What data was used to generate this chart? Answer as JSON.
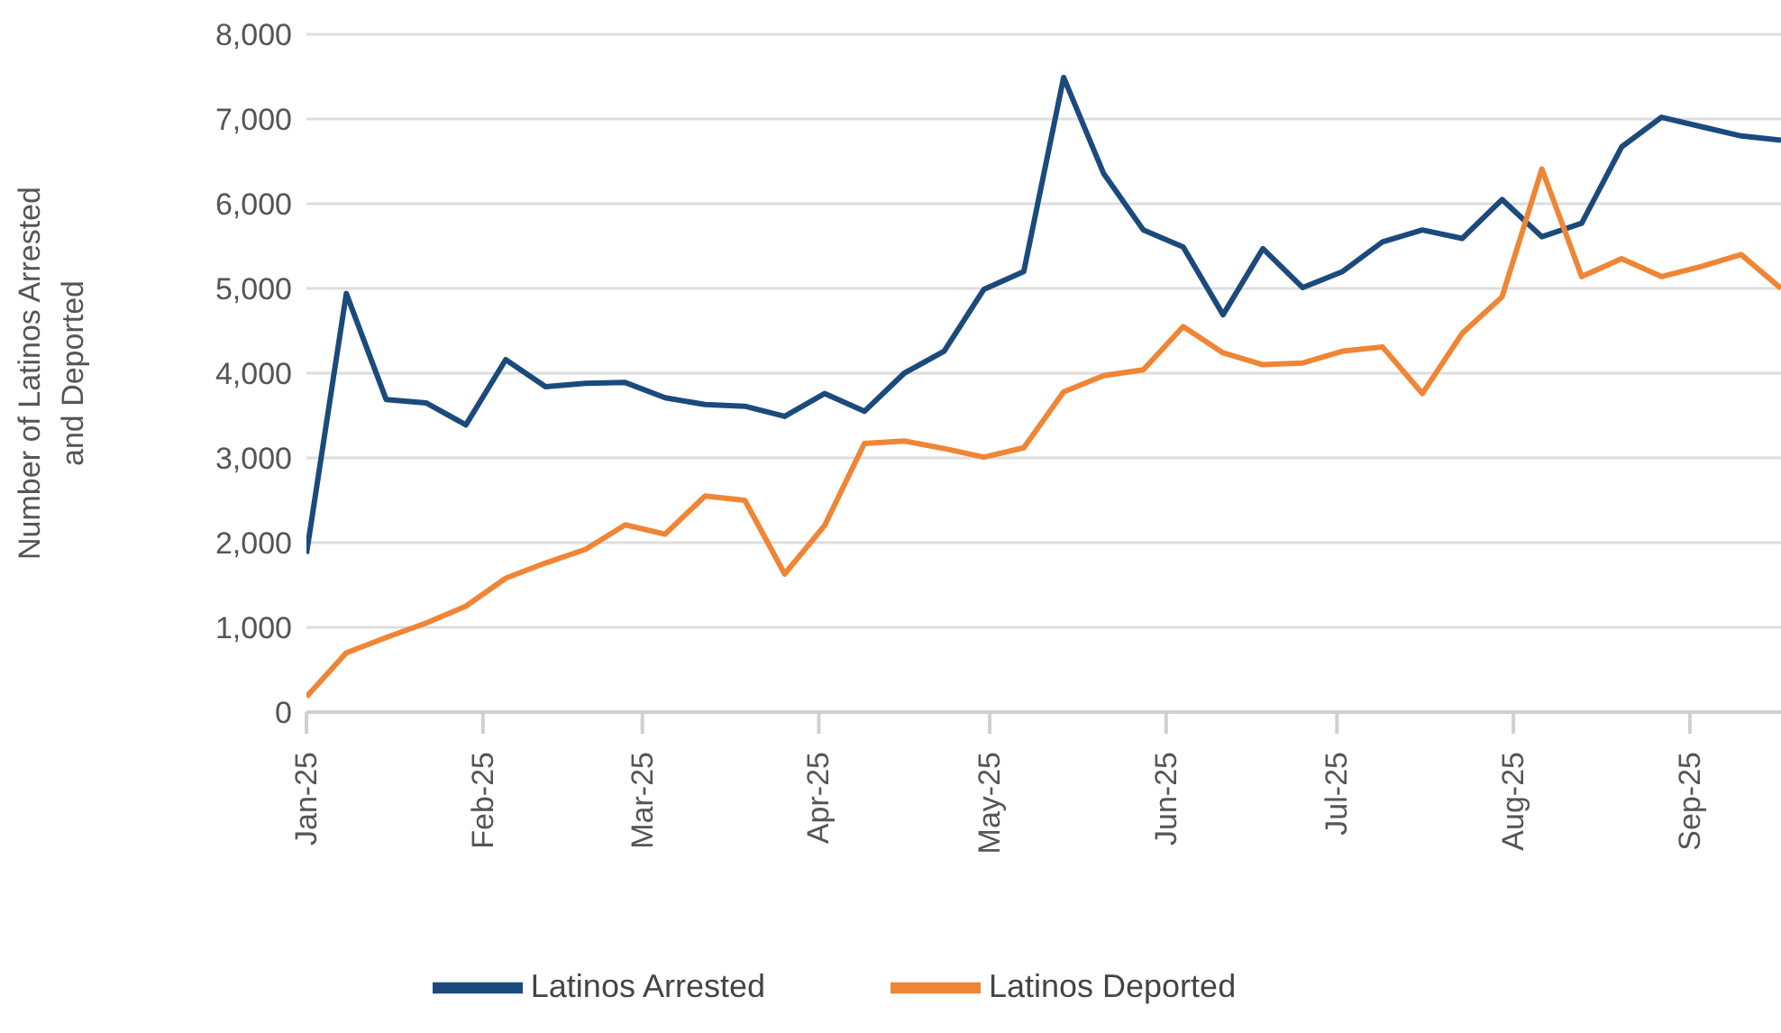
{
  "chart_data": {
    "type": "line",
    "ylabel": "Number of Latinos Arrested and Deported",
    "x": [
      "2025-01-01",
      "2025-01-08",
      "2025-01-15",
      "2025-01-22",
      "2025-01-29",
      "2025-02-05",
      "2025-02-12",
      "2025-02-19",
      "2025-02-26",
      "2025-03-05",
      "2025-03-12",
      "2025-03-19",
      "2025-03-26",
      "2025-04-02",
      "2025-04-09",
      "2025-04-16",
      "2025-04-23",
      "2025-04-30",
      "2025-05-07",
      "2025-05-14",
      "2025-05-21",
      "2025-05-28",
      "2025-06-04",
      "2025-06-11",
      "2025-06-18",
      "2025-06-25",
      "2025-07-02",
      "2025-07-09",
      "2025-07-16",
      "2025-07-23",
      "2025-07-30",
      "2025-08-06",
      "2025-08-13",
      "2025-08-20",
      "2025-08-27",
      "2025-09-03",
      "2025-09-10",
      "2025-09-17"
    ],
    "series": [
      {
        "name": "Latinos Arrested",
        "color": "#1b4a7c",
        "values": [
          1870,
          4940,
          3690,
          3650,
          3390,
          4160,
          3840,
          3880,
          3890,
          3710,
          3630,
          3610,
          3490,
          3760,
          3550,
          4000,
          4260,
          4990,
          5200,
          7490,
          6360,
          5690,
          5490,
          4690,
          5470,
          5010,
          5200,
          5550,
          5690,
          5590,
          6050,
          5610,
          5770,
          6670,
          7020,
          6910,
          6800,
          6750
        ]
      },
      {
        "name": "Latinos Deported",
        "color": "#ef8535",
        "values": [
          180,
          700,
          880,
          1050,
          1250,
          1580,
          1760,
          1920,
          2210,
          2100,
          2550,
          2500,
          1630,
          2200,
          3170,
          3200,
          3110,
          3010,
          3120,
          3780,
          3970,
          4040,
          4550,
          4240,
          4100,
          4120,
          4260,
          4310,
          3760,
          4470,
          4900,
          6410,
          5140,
          5350,
          5140,
          5260,
          5400,
          5000
        ]
      }
    ],
    "xlim": [
      "2025-01-01",
      "2025-09-17"
    ],
    "xticks": [
      {
        "value": "2025-01-01",
        "label": "Jan-25"
      },
      {
        "value": "2025-02-01",
        "label": "Feb-25"
      },
      {
        "value": "2025-03-01",
        "label": "Mar-25"
      },
      {
        "value": "2025-04-01",
        "label": "Apr-25"
      },
      {
        "value": "2025-05-01",
        "label": "May-25"
      },
      {
        "value": "2025-06-01",
        "label": "Jun-25"
      },
      {
        "value": "2025-07-01",
        "label": "Jul-25"
      },
      {
        "value": "2025-08-01",
        "label": "Aug-25"
      },
      {
        "value": "2025-09-01",
        "label": "Sep-25"
      }
    ],
    "ylim": [
      0,
      8000
    ],
    "yticks": [
      {
        "value": 0,
        "label": "0"
      },
      {
        "value": 1000,
        "label": "1,000"
      },
      {
        "value": 2000,
        "label": "2,000"
      },
      {
        "value": 3000,
        "label": "3,000"
      },
      {
        "value": 4000,
        "label": "4,000"
      },
      {
        "value": 5000,
        "label": "5,000"
      },
      {
        "value": 6000,
        "label": "6,000"
      },
      {
        "value": 7000,
        "label": "7,000"
      },
      {
        "value": 8000,
        "label": "8,000"
      }
    ],
    "grid": "y",
    "legend": "bottom"
  }
}
